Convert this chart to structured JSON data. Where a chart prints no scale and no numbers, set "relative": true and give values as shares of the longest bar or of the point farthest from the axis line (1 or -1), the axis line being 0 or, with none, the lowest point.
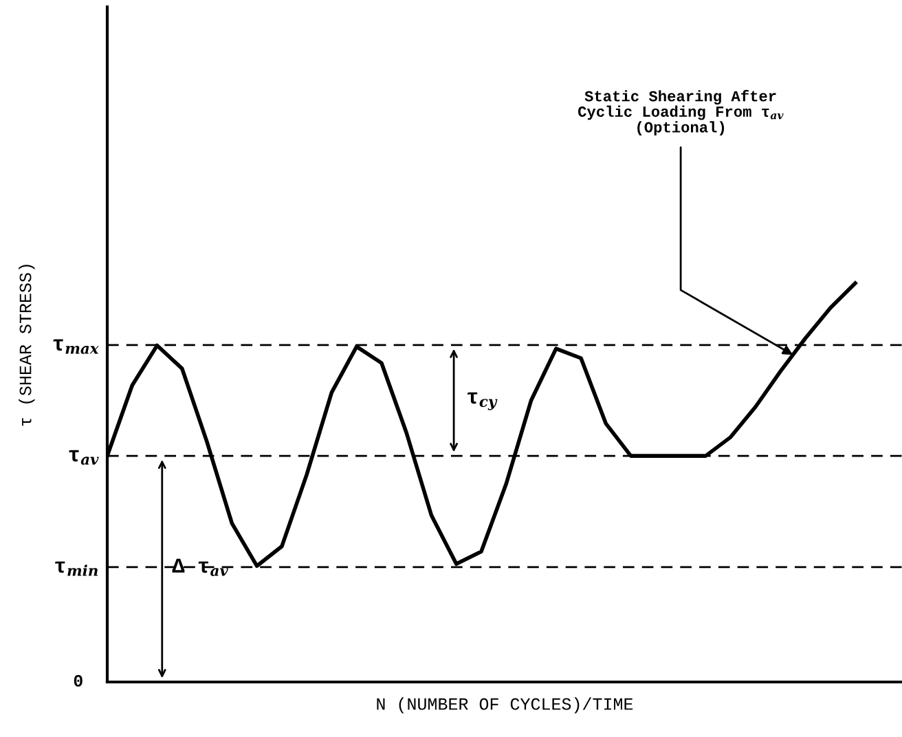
{
  "chart_data": {
    "type": "line",
    "relative": true,
    "xlabel": "N (NUMBER OF CYCLES)/TIME",
    "ylabel": "τ (SHEAR STRESS)",
    "categories": [
      null,
      null,
      null,
      null,
      null,
      null,
      null,
      null,
      null,
      null,
      null,
      null,
      null,
      null,
      null,
      null,
      null,
      null,
      null,
      null,
      null,
      null,
      null,
      null,
      null,
      null,
      null,
      null,
      null,
      null,
      null
    ],
    "series": [
      {
        "color": "#000000",
        "values": [
          0.567,
          0.744,
          0.844,
          0.786,
          0.602,
          0.398,
          0.291,
          0.34,
          0.52,
          0.726,
          0.841,
          0.8,
          0.625,
          0.418,
          0.296,
          0.327,
          0.497,
          0.706,
          0.836,
          0.812,
          0.648,
          0.567,
          0.567,
          0.567,
          0.567,
          0.614,
          0.69,
          0.779,
          0.862,
          0.938,
          1.0
        ]
      }
    ],
    "ref_lines": [
      {
        "axis": "y",
        "value": 0.845,
        "label": "τ$_{max}$",
        "line_style": "dashed",
        "color": "#000000"
      },
      {
        "axis": "y",
        "value": 0.567,
        "label": "τ$_{av}$",
        "line_style": "dashed",
        "color": "#000000"
      },
      {
        "axis": "y",
        "value": 0.288,
        "label": "τ$_{min}$",
        "line_style": "dashed",
        "color": "#000000"
      }
    ],
    "annotations": [
      "0",
      "τ$_{cy}$",
      "Δ τ$_{av}$",
      "Static Shearing After\nCyclic Loading From τ$_{av}$\n(Optional)"
    ],
    "marker": "none",
    "line_style": "solid"
  }
}
